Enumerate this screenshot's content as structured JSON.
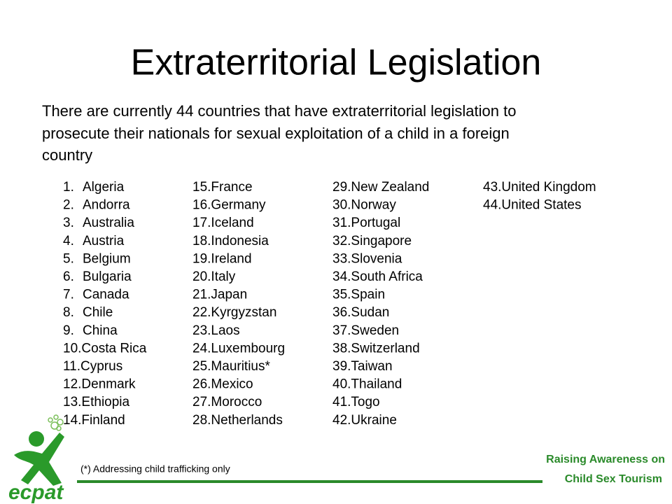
{
  "title": "Extraterritorial Legislation",
  "intro": [
    "There are currently 44 countries that have extraterritorial legislation to",
    "prosecute their nationals for sexual exploitation of a child in a foreign",
    "country"
  ],
  "countries": [
    {
      "number": "1.",
      "name": "Algeria"
    },
    {
      "number": "2.",
      "name": "Andorra"
    },
    {
      "number": "3.",
      "name": "Australia"
    },
    {
      "number": "4.",
      "name": "Austria"
    },
    {
      "number": "5.",
      "name": "Belgium"
    },
    {
      "number": "6.",
      "name": "Bulgaria"
    },
    {
      "number": "7.",
      "name": "Canada"
    },
    {
      "number": "8.",
      "name": "Chile"
    },
    {
      "number": "9.",
      "name": "China"
    },
    {
      "number": "10.",
      "name": "Costa Rica"
    },
    {
      "number": "11.",
      "name": "Cyprus"
    },
    {
      "number": "12.",
      "name": "Denmark"
    },
    {
      "number": "13.",
      "name": "Ethiopia"
    },
    {
      "number": "14.",
      "name": "Finland"
    },
    {
      "number": "15.",
      "name": "France"
    },
    {
      "number": "16.",
      "name": "Germany"
    },
    {
      "number": "17.",
      "name": "Iceland"
    },
    {
      "number": "18.",
      "name": "Indonesia"
    },
    {
      "number": "19.",
      "name": "Ireland"
    },
    {
      "number": "20.",
      "name": "Italy"
    },
    {
      "number": "21.",
      "name": "Japan"
    },
    {
      "number": "22.",
      "name": "Kyrgyzstan"
    },
    {
      "number": "23.",
      "name": "Laos"
    },
    {
      "number": "24.",
      "name": "Luxembourg"
    },
    {
      "number": "25.",
      "name": "Mauritius*"
    },
    {
      "number": "26.",
      "name": "Mexico"
    },
    {
      "number": "27.",
      "name": "Morocco"
    },
    {
      "number": "28.",
      "name": "Netherlands"
    },
    {
      "number": "29.",
      "name": "New Zealand"
    },
    {
      "number": "30.",
      "name": "Norway"
    },
    {
      "number": "31.",
      "name": "Portugal"
    },
    {
      "number": "32.",
      "name": "Singapore"
    },
    {
      "number": "33.",
      "name": "Slovenia"
    },
    {
      "number": "34.",
      "name": "South Africa"
    },
    {
      "number": "35.",
      "name": "Spain"
    },
    {
      "number": "36.",
      "name": "Sudan"
    },
    {
      "number": "37.",
      "name": "Sweden"
    },
    {
      "number": "38.",
      "name": "Switzerland"
    },
    {
      "number": "39.",
      "name": "Taiwan"
    },
    {
      "number": "40.",
      "name": "Thailand"
    },
    {
      "number": "41.",
      "name": "Togo"
    },
    {
      "number": "42.",
      "name": "Ukraine"
    },
    {
      "number": "43.",
      "name": "United Kingdom"
    },
    {
      "number": "44.",
      "name": "United States"
    }
  ],
  "footnote": "(*) Addressing child trafficking only",
  "footer": [
    "Raising Awareness on",
    "Child Sex Tourism"
  ],
  "logo": "ecpat"
}
